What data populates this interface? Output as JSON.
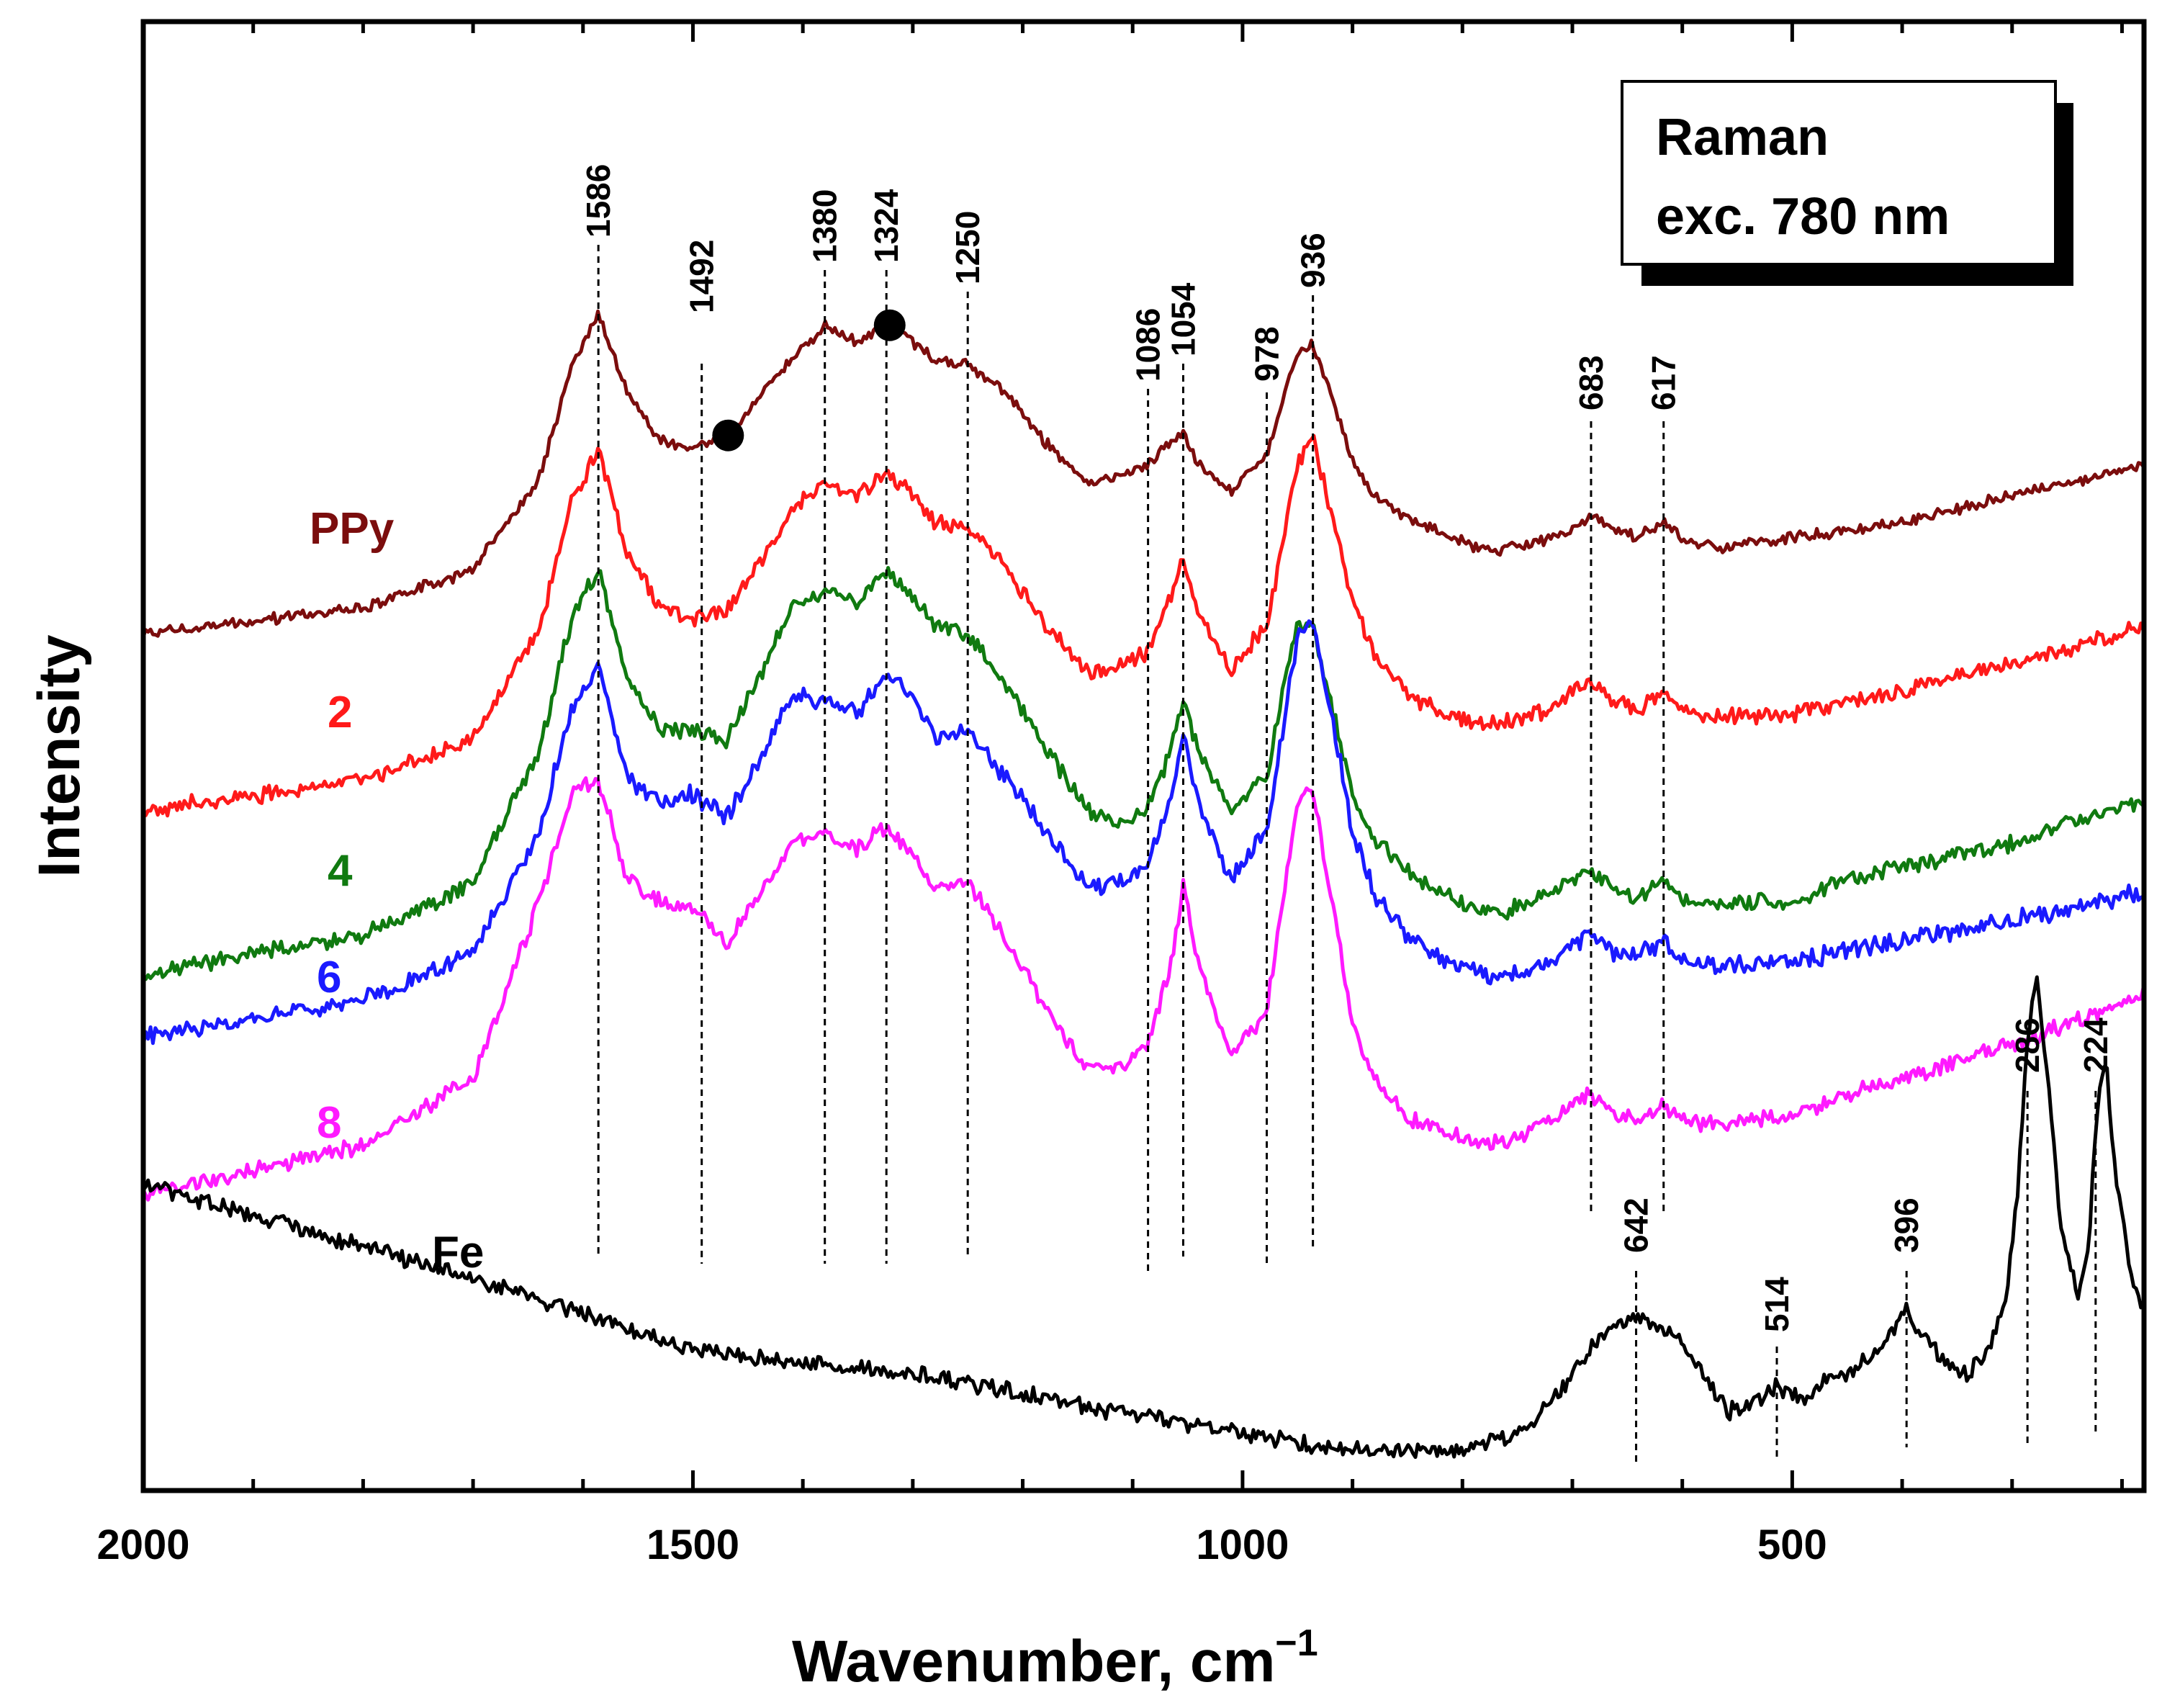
{
  "chart_data": {
    "type": "line",
    "title": "",
    "xlabel": "Wavenumber, cm",
    "xlabel_superscript": "−1",
    "ylabel": "Intensity",
    "xlim": [
      2000,
      180
    ],
    "xticks": [
      2000,
      1500,
      1000,
      500
    ],
    "x_minor_step": 100,
    "yaxis_numbers_shown": false,
    "legend_lines": [
      "Raman",
      "exc. 780 nm"
    ],
    "series": [
      {
        "name": "PPy",
        "color": "#7b0d0d",
        "x": [
          2000,
          1800,
          1700,
          1640,
          1610,
          1586,
          1560,
          1530,
          1500,
          1470,
          1440,
          1410,
          1380,
          1350,
          1324,
          1300,
          1280,
          1250,
          1220,
          1180,
          1140,
          1110,
          1086,
          1065,
          1054,
          1040,
          1010,
          990,
          978,
          960,
          950,
          936,
          920,
          900,
          880,
          850,
          820,
          790,
          760,
          720,
          700,
          683,
          660,
          640,
          617,
          600,
          560,
          500,
          450,
          400,
          350,
          300,
          250,
          180
        ],
        "y": [
          0.0,
          0.08,
          0.2,
          0.48,
          0.84,
          1.0,
          0.76,
          0.6,
          0.58,
          0.61,
          0.74,
          0.86,
          0.96,
          0.91,
          0.97,
          0.91,
          0.85,
          0.84,
          0.77,
          0.6,
          0.47,
          0.49,
          0.53,
          0.6,
          0.62,
          0.53,
          0.44,
          0.52,
          0.56,
          0.77,
          0.88,
          0.9,
          0.75,
          0.54,
          0.43,
          0.36,
          0.32,
          0.27,
          0.26,
          0.3,
          0.33,
          0.37,
          0.32,
          0.3,
          0.35,
          0.29,
          0.27,
          0.3,
          0.32,
          0.35,
          0.39,
          0.43,
          0.47,
          0.53
        ]
      },
      {
        "name": "2",
        "color": "#ff1a1a",
        "x": [
          2000,
          1800,
          1700,
          1640,
          1610,
          1586,
          1560,
          1530,
          1500,
          1470,
          1440,
          1410,
          1380,
          1350,
          1324,
          1300,
          1280,
          1250,
          1220,
          1180,
          1140,
          1110,
          1086,
          1065,
          1054,
          1040,
          1010,
          990,
          978,
          960,
          950,
          936,
          920,
          900,
          880,
          850,
          820,
          790,
          760,
          720,
          700,
          683,
          660,
          640,
          617,
          600,
          560,
          500,
          450,
          400,
          350,
          300,
          250,
          180
        ],
        "y": [
          0.0,
          0.08,
          0.2,
          0.5,
          0.86,
          1.0,
          0.72,
          0.56,
          0.53,
          0.55,
          0.68,
          0.83,
          0.91,
          0.87,
          0.94,
          0.88,
          0.8,
          0.79,
          0.69,
          0.52,
          0.38,
          0.4,
          0.44,
          0.6,
          0.7,
          0.55,
          0.39,
          0.47,
          0.51,
          0.8,
          0.96,
          1.03,
          0.84,
          0.58,
          0.43,
          0.32,
          0.27,
          0.24,
          0.24,
          0.28,
          0.33,
          0.36,
          0.3,
          0.28,
          0.32,
          0.27,
          0.26,
          0.27,
          0.3,
          0.33,
          0.37,
          0.41,
          0.45,
          0.51
        ]
      },
      {
        "name": "4",
        "color": "#107a10",
        "x": [
          2000,
          1800,
          1700,
          1640,
          1610,
          1586,
          1560,
          1530,
          1500,
          1470,
          1440,
          1410,
          1380,
          1350,
          1324,
          1300,
          1280,
          1250,
          1220,
          1180,
          1140,
          1110,
          1086,
          1065,
          1054,
          1040,
          1010,
          990,
          978,
          960,
          950,
          936,
          920,
          900,
          880,
          850,
          820,
          790,
          760,
          720,
          700,
          683,
          660,
          640,
          617,
          600,
          560,
          500,
          450,
          400,
          350,
          300,
          250,
          180
        ],
        "y": [
          0.0,
          0.09,
          0.22,
          0.55,
          0.88,
          1.0,
          0.73,
          0.6,
          0.6,
          0.57,
          0.73,
          0.9,
          0.95,
          0.92,
          0.99,
          0.93,
          0.86,
          0.84,
          0.73,
          0.56,
          0.4,
          0.37,
          0.41,
          0.55,
          0.68,
          0.55,
          0.4,
          0.46,
          0.49,
          0.74,
          0.85,
          0.86,
          0.67,
          0.44,
          0.33,
          0.25,
          0.2,
          0.16,
          0.15,
          0.2,
          0.23,
          0.26,
          0.2,
          0.19,
          0.23,
          0.18,
          0.17,
          0.18,
          0.23,
          0.26,
          0.29,
          0.32,
          0.37,
          0.43
        ]
      },
      {
        "name": "6",
        "color": "#1a1aff",
        "x": [
          2000,
          1800,
          1700,
          1640,
          1610,
          1586,
          1560,
          1530,
          1500,
          1470,
          1440,
          1410,
          1380,
          1350,
          1324,
          1300,
          1280,
          1250,
          1220,
          1180,
          1140,
          1110,
          1086,
          1065,
          1054,
          1040,
          1010,
          990,
          978,
          960,
          950,
          936,
          920,
          900,
          880,
          850,
          820,
          790,
          760,
          720,
          700,
          683,
          660,
          640,
          617,
          600,
          560,
          500,
          450,
          400,
          350,
          300,
          250,
          180
        ],
        "y": [
          0.0,
          0.1,
          0.22,
          0.55,
          0.88,
          1.0,
          0.7,
          0.62,
          0.65,
          0.58,
          0.73,
          0.91,
          0.9,
          0.86,
          0.98,
          0.9,
          0.8,
          0.82,
          0.71,
          0.55,
          0.4,
          0.42,
          0.46,
          0.64,
          0.82,
          0.62,
          0.42,
          0.51,
          0.54,
          0.88,
          1.08,
          1.12,
          0.87,
          0.55,
          0.38,
          0.27,
          0.21,
          0.17,
          0.16,
          0.2,
          0.25,
          0.28,
          0.22,
          0.22,
          0.26,
          0.2,
          0.19,
          0.2,
          0.23,
          0.26,
          0.28,
          0.31,
          0.34,
          0.39
        ]
      },
      {
        "name": "8",
        "color": "#ff1aff",
        "x": [
          2000,
          1800,
          1700,
          1640,
          1610,
          1586,
          1560,
          1530,
          1500,
          1470,
          1440,
          1410,
          1380,
          1350,
          1324,
          1300,
          1280,
          1250,
          1220,
          1180,
          1140,
          1110,
          1086,
          1065,
          1054,
          1040,
          1010,
          990,
          978,
          960,
          950,
          936,
          920,
          900,
          880,
          850,
          820,
          790,
          760,
          720,
          700,
          683,
          660,
          640,
          617,
          600,
          560,
          500,
          450,
          400,
          350,
          300,
          250,
          180
        ],
        "y": [
          0.0,
          0.12,
          0.28,
          0.7,
          0.97,
          1.0,
          0.76,
          0.7,
          0.69,
          0.6,
          0.72,
          0.84,
          0.87,
          0.83,
          0.88,
          0.82,
          0.74,
          0.75,
          0.63,
          0.45,
          0.3,
          0.31,
          0.36,
          0.56,
          0.74,
          0.55,
          0.34,
          0.4,
          0.44,
          0.77,
          0.94,
          0.98,
          0.72,
          0.41,
          0.27,
          0.19,
          0.15,
          0.13,
          0.13,
          0.18,
          0.22,
          0.24,
          0.19,
          0.19,
          0.22,
          0.18,
          0.17,
          0.19,
          0.24,
          0.28,
          0.32,
          0.36,
          0.41,
          0.48
        ]
      },
      {
        "name": "Fe",
        "color": "#000000",
        "x": [
          2000,
          1900,
          1800,
          1700,
          1600,
          1500,
          1400,
          1300,
          1200,
          1100,
          1000,
          900,
          800,
          750,
          720,
          700,
          680,
          660,
          642,
          620,
          600,
          580,
          560,
          540,
          514,
          490,
          470,
          450,
          420,
          396,
          380,
          360,
          340,
          320,
          305,
          295,
          286,
          278,
          268,
          255,
          240,
          230,
          224,
          215,
          205,
          190,
          180
        ],
        "y": [
          0.9,
          0.8,
          0.7,
          0.6,
          0.49,
          0.38,
          0.33,
          0.3,
          0.24,
          0.17,
          0.11,
          0.06,
          0.06,
          0.11,
          0.2,
          0.3,
          0.4,
          0.45,
          0.48,
          0.44,
          0.4,
          0.3,
          0.18,
          0.2,
          0.26,
          0.22,
          0.28,
          0.3,
          0.38,
          0.5,
          0.42,
          0.34,
          0.3,
          0.38,
          0.55,
          0.88,
          1.35,
          1.55,
          1.25,
          0.75,
          0.55,
          0.7,
          1.1,
          1.3,
          0.9,
          0.58,
          0.5
        ]
      }
    ],
    "series_labels": [
      {
        "text": "PPy",
        "color": "#7b0d0d"
      },
      {
        "text": "2",
        "color": "#ff1a1a"
      },
      {
        "text": "4",
        "color": "#107a10"
      },
      {
        "text": "6",
        "color": "#1a1aff"
      },
      {
        "text": "8",
        "color": "#ff1aff"
      },
      {
        "text": "Fe",
        "color": "#000000"
      }
    ],
    "peak_annotations": [
      {
        "label": "1586",
        "x": 1586
      },
      {
        "label": "1492",
        "x": 1492
      },
      {
        "label": "1380",
        "x": 1380
      },
      {
        "label": "1324",
        "x": 1324
      },
      {
        "label": "1250",
        "x": 1250
      },
      {
        "label": "1086",
        "x": 1086
      },
      {
        "label": "1054",
        "x": 1054
      },
      {
        "label": "978",
        "x": 978
      },
      {
        "label": "936",
        "x": 936
      },
      {
        "label": "683",
        "x": 683
      },
      {
        "label": "617",
        "x": 617
      },
      {
        "label": "642",
        "x": 642
      },
      {
        "label": "514",
        "x": 514
      },
      {
        "label": "396",
        "x": 396
      },
      {
        "label": "286",
        "x": 286
      },
      {
        "label": "224",
        "x": 224
      }
    ],
    "marker_dots": [
      {
        "series": "PPy",
        "x": 1468
      },
      {
        "series": "PPy",
        "x": 1321
      }
    ]
  }
}
